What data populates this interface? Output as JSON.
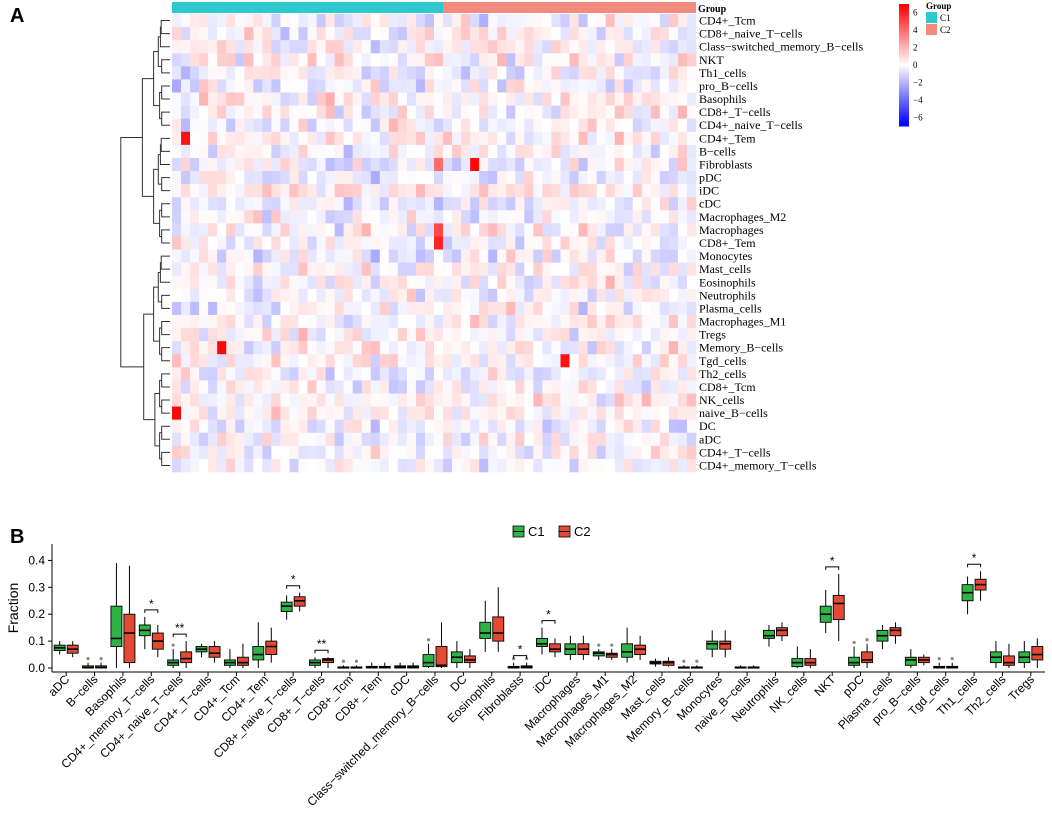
{
  "chart_data": [
    {
      "type": "heatmap",
      "panel_label": "A",
      "group_title": "Group",
      "legend_title": "Group",
      "groups": [
        {
          "name": "C1",
          "color": "#2ec9d0",
          "count": 30
        },
        {
          "name": "C2",
          "color": "#f28b7d",
          "count": 28
        }
      ],
      "rows": [
        "CD4+_Tcm",
        "CD8+_naive_T−cells",
        "Class−switched_memory_B−cells",
        "NKT",
        "Th1_cells",
        "pro_B−cells",
        "Basophils",
        "CD8+_T−cells",
        "CD4+_naive_T−cells",
        "CD4+_Tem",
        "B−cells",
        "Fibroblasts",
        "pDC",
        "iDC",
        "cDC",
        "Macrophages_M2",
        "Macrophages",
        "CD8+_Tem",
        "Monocytes",
        "Mast_cells",
        "Eosinophils",
        "Neutrophils",
        "Plasma_cells",
        "Macrophages_M1",
        "Tregs",
        "Memory_B−cells",
        "Tgd_cells",
        "Th2_cells",
        "CD8+_Tcm",
        "NK_cells",
        "naive_B−cells",
        "DC",
        "aDC",
        "CD4+_T−cells",
        "CD4+_memory_T−cells"
      ],
      "colorscale": {
        "min": -7,
        "max": 7,
        "low": "#0000ff",
        "mid": "#ffffff",
        "high": "#ff0000",
        "ticks": [
          6,
          4,
          2,
          0,
          -2,
          -4,
          -6
        ],
        "tick_labels": [
          "6",
          "4",
          "2",
          "0",
          "−2",
          "−4",
          "−6"
        ]
      },
      "strong_cells": [
        {
          "row": "CD4+_Tem",
          "col": 1,
          "value": 6.5
        },
        {
          "row": "Fibroblasts",
          "col": 33,
          "value": 6.8
        },
        {
          "row": "Memory_B−cells",
          "col": 5,
          "value": 6.8
        },
        {
          "row": "Tgd_cells",
          "col": 43,
          "value": 6.5
        },
        {
          "row": "naive_B−cells",
          "col": 0,
          "value": 6.8
        },
        {
          "row": "CD8+_Tem",
          "col": 29,
          "value": 6.0
        },
        {
          "row": "Macrophages",
          "col": 29,
          "value": 5.0
        },
        {
          "row": "Fibroblasts",
          "col": 29,
          "value": 4.0
        }
      ]
    },
    {
      "type": "box",
      "panel_label": "B",
      "ylabel": "Fraction",
      "ylim": [
        0,
        0.45
      ],
      "yticks": [
        0.0,
        0.1,
        0.2,
        0.3,
        0.4
      ],
      "ytick_labels": [
        "0.0",
        "0.1",
        "0.2",
        "0.3",
        "0.4"
      ],
      "legend": [
        {
          "name": "C1",
          "color": "#2fb344"
        },
        {
          "name": "C2",
          "color": "#e24a33"
        }
      ],
      "categories": [
        "aDC",
        "B−cells",
        "Basophils",
        "CD4+_memory_T−cells",
        "CD4+_naive_T−cells",
        "CD4+_T−cells",
        "CD4+_Tcm",
        "CD4+_Tem",
        "CD8+_naive_T−cells",
        "CD8+_T−cells",
        "CD8+_Tcm",
        "CD8+_Tem",
        "cDC",
        "Class−switched_memory_B−cells",
        "DC",
        "Eosinophils",
        "Fibroblasts",
        "iDC",
        "Macrophages",
        "Macrophages_M1",
        "Macrophages_M2",
        "Mast_cells",
        "Memory_B−cells",
        "Monocytes",
        "naive_B−cells",
        "Neutrophils",
        "NK_cells",
        "NKT",
        "pDC",
        "Plasma_cells",
        "pro_B−cells",
        "Tgd_cells",
        "Th1_cells",
        "Th2_cells",
        "Tregs"
      ],
      "series": [
        {
          "name": "C1",
          "boxes": [
            [
              0.05,
              0.065,
              0.075,
              0.085,
              0.1
            ],
            [
              0,
              0,
              0.002,
              0.008,
              0.02
            ],
            [
              0,
              0.08,
              0.11,
              0.23,
              0.39
            ],
            [
              0.07,
              0.12,
              0.14,
              0.16,
              0.19
            ],
            [
              0,
              0.01,
              0.02,
              0.03,
              0.07
            ],
            [
              0.04,
              0.06,
              0.07,
              0.08,
              0.09
            ],
            [
              0,
              0.01,
              0.02,
              0.03,
              0.07
            ],
            [
              0,
              0.03,
              0.05,
              0.08,
              0.17
            ],
            [
              0.18,
              0.21,
              0.23,
              0.245,
              0.27
            ],
            [
              0,
              0.01,
              0.02,
              0.03,
              0.04
            ],
            [
              0,
              0,
              0.002,
              0.004,
              0.01
            ],
            [
              0,
              0,
              0.003,
              0.006,
              0.02
            ],
            [
              0,
              0,
              0.004,
              0.008,
              0.02
            ],
            [
              0,
              0.005,
              0.02,
              0.05,
              0.09
            ],
            [
              0,
              0.02,
              0.04,
              0.06,
              0.1
            ],
            [
              0.06,
              0.11,
              0.13,
              0.17,
              0.25
            ],
            [
              0,
              0,
              0.002,
              0.006,
              0.02
            ],
            [
              0.05,
              0.08,
              0.09,
              0.11,
              0.15
            ],
            [
              0.03,
              0.05,
              0.07,
              0.09,
              0.12
            ],
            [
              0.03,
              0.045,
              0.055,
              0.06,
              0.07
            ],
            [
              0.02,
              0.04,
              0.06,
              0.09,
              0.15
            ],
            [
              0.005,
              0.015,
              0.02,
              0.025,
              0.035
            ],
            [
              0,
              0,
              0.002,
              0.004,
              0.01
            ],
            [
              0.04,
              0.07,
              0.09,
              0.1,
              0.14
            ],
            [
              0,
              0,
              0.002,
              0.004,
              0.01
            ],
            [
              0.08,
              0.11,
              0.12,
              0.14,
              0.16
            ],
            [
              0,
              0.005,
              0.02,
              0.035,
              0.08
            ],
            [
              0.13,
              0.17,
              0.2,
              0.23,
              0.29
            ],
            [
              0,
              0.01,
              0.02,
              0.04,
              0.08
            ],
            [
              0.07,
              0.1,
              0.12,
              0.14,
              0.16
            ],
            [
              0,
              0.01,
              0.03,
              0.04,
              0.07
            ],
            [
              0,
              0,
              0.002,
              0.006,
              0.02
            ],
            [
              0.2,
              0.25,
              0.28,
              0.31,
              0.34
            ],
            [
              0,
              0.02,
              0.04,
              0.06,
              0.1
            ],
            [
              0,
              0.02,
              0.04,
              0.06,
              0.1
            ]
          ]
        },
        {
          "name": "C2",
          "boxes": [
            [
              0.04,
              0.055,
              0.07,
              0.085,
              0.1
            ],
            [
              0,
              0,
              0.002,
              0.008,
              0.02
            ],
            [
              0,
              0.02,
              0.13,
              0.2,
              0.38
            ],
            [
              0.04,
              0.07,
              0.1,
              0.13,
              0.16
            ],
            [
              0,
              0.02,
              0.035,
              0.06,
              0.1
            ],
            [
              0.02,
              0.04,
              0.055,
              0.08,
              0.1
            ],
            [
              0,
              0.01,
              0.02,
              0.04,
              0.09
            ],
            [
              0.02,
              0.05,
              0.08,
              0.1,
              0.15
            ],
            [
              0.21,
              0.23,
              0.25,
              0.265,
              0.28
            ],
            [
              0,
              0.02,
              0.03,
              0.035,
              0.04
            ],
            [
              0,
              0,
              0.002,
              0.004,
              0.01
            ],
            [
              0,
              0,
              0.004,
              0.006,
              0.02
            ],
            [
              0,
              0,
              0.004,
              0.008,
              0.02
            ],
            [
              0,
              0.005,
              0.01,
              0.08,
              0.17
            ],
            [
              0,
              0.02,
              0.03,
              0.045,
              0.07
            ],
            [
              0.06,
              0.1,
              0.13,
              0.19,
              0.3
            ],
            [
              0,
              0,
              0.004,
              0.008,
              0.02
            ],
            [
              0.04,
              0.06,
              0.07,
              0.09,
              0.11
            ],
            [
              0.03,
              0.05,
              0.07,
              0.09,
              0.12
            ],
            [
              0.03,
              0.04,
              0.05,
              0.055,
              0.07
            ],
            [
              0.03,
              0.05,
              0.07,
              0.085,
              0.12
            ],
            [
              0.005,
              0.01,
              0.02,
              0.025,
              0.04
            ],
            [
              0,
              0,
              0.002,
              0.004,
              0.01
            ],
            [
              0.04,
              0.07,
              0.09,
              0.1,
              0.14
            ],
            [
              0,
              0,
              0.002,
              0.004,
              0.01
            ],
            [
              0.1,
              0.12,
              0.14,
              0.15,
              0.17
            ],
            [
              0,
              0.01,
              0.02,
              0.035,
              0.07
            ],
            [
              0.1,
              0.18,
              0.24,
              0.27,
              0.35
            ],
            [
              0,
              0.02,
              0.03,
              0.06,
              0.09
            ],
            [
              0.09,
              0.12,
              0.14,
              0.15,
              0.17
            ],
            [
              0.01,
              0.02,
              0.03,
              0.04,
              0.05
            ],
            [
              0,
              0,
              0.002,
              0.006,
              0.02
            ],
            [
              0.25,
              0.29,
              0.31,
              0.33,
              0.36
            ],
            [
              0,
              0.01,
              0.02,
              0.045,
              0.09
            ],
            [
              0,
              0.03,
              0.05,
              0.08,
              0.11
            ]
          ]
        }
      ],
      "significance": [
        {
          "category": "CD4+_memory_T−cells",
          "label": "*"
        },
        {
          "category": "CD4+_naive_T−cells",
          "label": "**"
        },
        {
          "category": "CD8+_naive_T−cells",
          "label": "*"
        },
        {
          "category": "CD8+_T−cells",
          "label": "**"
        },
        {
          "category": "Fibroblasts",
          "label": "*"
        },
        {
          "category": "iDC",
          "label": "*"
        },
        {
          "category": "NKT",
          "label": "*"
        },
        {
          "category": "Th1_cells",
          "label": "*"
        }
      ]
    }
  ]
}
